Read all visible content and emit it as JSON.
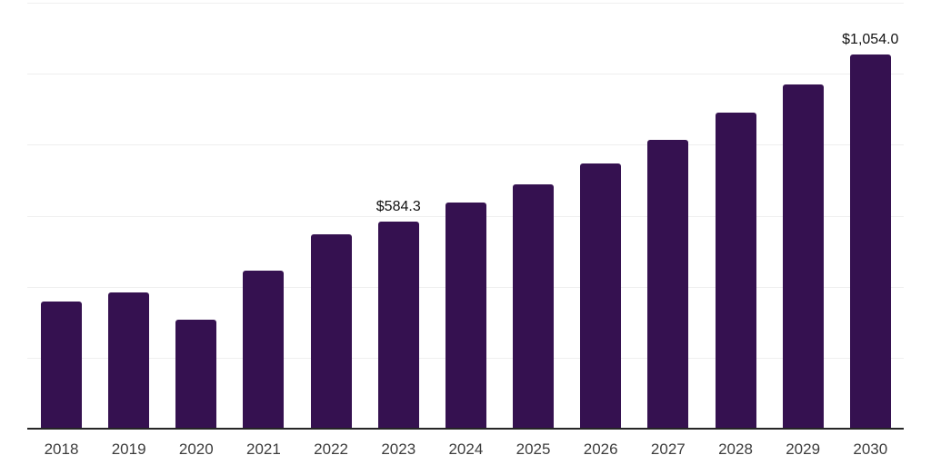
{
  "page": {
    "background": "#FFFFFF"
  },
  "chart_data": {
    "type": "bar",
    "title": "",
    "xlabel": "",
    "ylabel": "",
    "categories": [
      "2018",
      "2019",
      "2020",
      "2021",
      "2022",
      "2023",
      "2024",
      "2025",
      "2026",
      "2027",
      "2028",
      "2029",
      "2030"
    ],
    "values": [
      358,
      384,
      307,
      445,
      548,
      584.3,
      637,
      688,
      747,
      814,
      890,
      970,
      1054
    ],
    "data_labels": [
      "",
      "",
      "",
      "",
      "",
      "$584.3",
      "",
      "",
      "",
      "",
      "",
      "",
      "$1,054.0"
    ],
    "ylim": [
      0,
      1200
    ],
    "grid_step": 200,
    "grid": "horizontal",
    "legend": "none",
    "y_axis_labels_visible": false,
    "colors": {
      "bar": "#351150",
      "axis_line": "#262626",
      "gridline": "#EFEFEF",
      "tick_label": "#3D3D3D",
      "data_label": "#111111"
    }
  }
}
